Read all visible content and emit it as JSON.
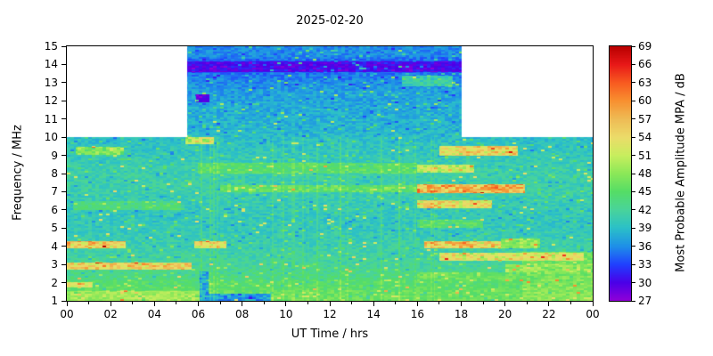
{
  "title": "2025-02-20",
  "axes": {
    "x": {
      "label": "UT Time / hrs",
      "tick_hours": [
        0,
        2,
        4,
        6,
        8,
        10,
        12,
        14,
        16,
        18,
        20,
        22,
        24
      ],
      "tick_labels": [
        "00",
        "02",
        "04",
        "06",
        "08",
        "10",
        "12",
        "14",
        "16",
        "18",
        "20",
        "22",
        "00"
      ],
      "minor_tick_hours": [
        1,
        3,
        5,
        7,
        9,
        11,
        13,
        15,
        17,
        19,
        21,
        23
      ],
      "range": [
        0,
        24
      ]
    },
    "y": {
      "label": "Frequency / MHz",
      "tick_values": [
        1,
        2,
        3,
        4,
        5,
        6,
        7,
        8,
        9,
        10,
        11,
        12,
        13,
        14,
        15
      ],
      "range": [
        1,
        15
      ]
    },
    "colorbar": {
      "label": "Most Probable Amplitude MPA / dB",
      "tick_values": [
        27,
        30,
        33,
        36,
        39,
        42,
        45,
        48,
        51,
        54,
        57,
        60,
        63,
        66,
        69
      ],
      "range": [
        27,
        69
      ]
    }
  },
  "chart_data": {
    "type": "heatmap",
    "title": "2025-02-20",
    "xlabel": "UT Time / hrs",
    "ylabel": "Frequency / MHz",
    "zlabel": "Most Probable Amplitude MPA / dB",
    "x_range_hours": [
      0,
      24
    ],
    "y_range_mhz": [
      1,
      15
    ],
    "z_range_db": [
      27,
      69
    ],
    "masked_region": {
      "freq_min_mhz": 10.0,
      "data_window_hours": [
        5.5,
        18.0
      ]
    },
    "background_db": 40,
    "base_profile": [
      [
        1,
        47
      ],
      [
        1.5,
        46
      ],
      [
        2,
        44
      ],
      [
        3,
        42
      ],
      [
        4,
        41
      ],
      [
        5,
        40
      ],
      [
        6,
        40
      ],
      [
        7,
        41
      ],
      [
        8,
        41
      ],
      [
        9,
        40
      ],
      [
        10,
        39
      ],
      [
        11,
        38
      ],
      [
        12.5,
        37
      ],
      [
        13.5,
        35
      ],
      [
        14,
        33
      ],
      [
        14.5,
        36
      ],
      [
        15,
        36
      ]
    ],
    "features": [
      {
        "f": [
          13.6,
          14.15
        ],
        "t": [
          5.5,
          18.0
        ],
        "db": 29
      },
      {
        "f": [
          11.9,
          12.35
        ],
        "t": [
          5.9,
          6.5
        ],
        "db": 28
      },
      {
        "f": [
          14.4,
          15.0
        ],
        "t": [
          5.5,
          18.0
        ],
        "db": 36
      },
      {
        "f": [
          12.8,
          13.4
        ],
        "t": [
          15.3,
          17.6
        ],
        "db": 43
      },
      {
        "f": [
          9.6,
          10.0
        ],
        "t": [
          5.4,
          6.7
        ],
        "db": 54
      },
      {
        "f": [
          9.0,
          9.5
        ],
        "t": [
          17.0,
          20.6
        ],
        "db": 58
      },
      {
        "f": [
          9.05,
          9.45
        ],
        "t": [
          0.4,
          2.6
        ],
        "db": 50
      },
      {
        "f": [
          8.0,
          8.6
        ],
        "t": [
          6.0,
          16.0
        ],
        "db": 46
      },
      {
        "f": [
          8.05,
          8.5
        ],
        "t": [
          16.0,
          18.6
        ],
        "db": 54
      },
      {
        "f": [
          6.9,
          7.4
        ],
        "t": [
          16.0,
          20.9
        ],
        "db": 62
      },
      {
        "f": [
          6.95,
          7.35
        ],
        "t": [
          7.0,
          16.0
        ],
        "db": 47
      },
      {
        "f": [
          6.1,
          6.55
        ],
        "t": [
          16.0,
          19.4
        ],
        "db": 58
      },
      {
        "f": [
          6.0,
          6.5
        ],
        "t": [
          0.3,
          5.2
        ],
        "db": 45
      },
      {
        "f": [
          5.0,
          5.45
        ],
        "t": [
          16.0,
          19.0
        ],
        "db": 46
      },
      {
        "f": [
          3.9,
          4.3
        ],
        "t": [
          0.0,
          2.7
        ],
        "db": 60
      },
      {
        "f": [
          3.9,
          4.3
        ],
        "t": [
          5.8,
          7.3
        ],
        "db": 57
      },
      {
        "f": [
          3.9,
          4.3
        ],
        "t": [
          16.3,
          19.8
        ],
        "db": 60
      },
      {
        "f": [
          3.9,
          4.45
        ],
        "t": [
          19.8,
          21.6
        ],
        "db": 50
      },
      {
        "f": [
          2.7,
          3.1
        ],
        "t": [
          0.0,
          5.7
        ],
        "db": 59
      },
      {
        "f": [
          3.2,
          3.65
        ],
        "t": [
          17.0,
          23.6
        ],
        "db": 56
      },
      {
        "f": [
          2.55,
          3.0
        ],
        "t": [
          20.0,
          24.0
        ],
        "db": 50
      },
      {
        "f": [
          1.6,
          2.15
        ],
        "t": [
          0.0,
          24.0
        ],
        "db": 45
      },
      {
        "f": [
          1.75,
          2.05
        ],
        "t": [
          0.0,
          1.2
        ],
        "db": 55
      },
      {
        "f": [
          2.1,
          2.55
        ],
        "t": [
          16.0,
          24.0
        ],
        "db": 47
      },
      {
        "f": [
          0.9,
          1.55
        ],
        "t": [
          0.0,
          6.1
        ],
        "db": 50
      },
      {
        "f": [
          1.0,
          1.4
        ],
        "t": [
          6.3,
          9.3
        ],
        "db": 34
      },
      {
        "f": [
          1.0,
          2.6
        ],
        "t": [
          6.05,
          6.45
        ],
        "db": 36
      },
      {
        "f": [
          0.9,
          1.6
        ],
        "t": [
          9.3,
          24.0
        ],
        "db": 46
      },
      {
        "f": [
          1.0,
          3.7
        ],
        "t": [
          20.8,
          24.0
        ],
        "db": 48
      }
    ],
    "palette": [
      [
        27,
        "#9000d8"
      ],
      [
        30,
        "#4a00e8"
      ],
      [
        33,
        "#2040ff"
      ],
      [
        36,
        "#1e90e8"
      ],
      [
        39,
        "#2bc0c8"
      ],
      [
        42,
        "#49d49b"
      ],
      [
        45,
        "#55dd66"
      ],
      [
        48,
        "#8ce858"
      ],
      [
        51,
        "#c8ee5e"
      ],
      [
        54,
        "#ecdc6a"
      ],
      [
        57,
        "#eebb55"
      ],
      [
        60,
        "#f89030"
      ],
      [
        63,
        "#f85a20"
      ],
      [
        66,
        "#e81818"
      ],
      [
        69,
        "#b80000"
      ]
    ]
  }
}
